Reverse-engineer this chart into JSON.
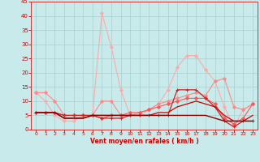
{
  "xlabel": "Vent moyen/en rafales ( km/h )",
  "xlim": [
    -0.5,
    23.5
  ],
  "ylim": [
    0,
    45
  ],
  "yticks": [
    0,
    5,
    10,
    15,
    20,
    25,
    30,
    35,
    40,
    45
  ],
  "xticks": [
    0,
    1,
    2,
    3,
    4,
    5,
    6,
    7,
    8,
    9,
    10,
    11,
    12,
    13,
    14,
    15,
    16,
    17,
    18,
    19,
    20,
    21,
    22,
    23
  ],
  "bg_color": "#c8eaea",
  "grid_color": "#a8d0d0",
  "lines": [
    {
      "x": [
        0,
        1,
        2,
        3,
        4,
        5,
        6,
        7,
        8,
        9,
        10,
        11,
        12,
        13,
        14,
        15,
        16,
        17,
        18,
        19,
        20,
        21,
        22,
        23
      ],
      "y": [
        13,
        10,
        5,
        3,
        3,
        5,
        5,
        41,
        29,
        14,
        5,
        5,
        7,
        9,
        14,
        22,
        26,
        26,
        21,
        17,
        8,
        1,
        7,
        9
      ],
      "color": "#ffaaaa",
      "lw": 0.8,
      "marker": "D",
      "ms": 2.0,
      "zorder": 2
    },
    {
      "x": [
        0,
        1,
        2,
        3,
        4,
        5,
        6,
        7,
        8,
        9,
        10,
        11,
        12,
        13,
        14,
        15,
        16,
        17,
        18,
        19,
        20,
        21,
        22,
        23
      ],
      "y": [
        13,
        13,
        10,
        5,
        5,
        5,
        5,
        10,
        10,
        5,
        5,
        6,
        7,
        9,
        10,
        11,
        12,
        13,
        12,
        17,
        18,
        8,
        7,
        9
      ],
      "color": "#ff8888",
      "lw": 0.8,
      "marker": "D",
      "ms": 2.0,
      "zorder": 3
    },
    {
      "x": [
        0,
        1,
        2,
        3,
        4,
        5,
        6,
        7,
        8,
        9,
        10,
        11,
        12,
        13,
        14,
        15,
        16,
        17,
        18,
        19,
        20,
        21,
        22,
        23
      ],
      "y": [
        6,
        6,
        6,
        5,
        5,
        5,
        5,
        4,
        5,
        5,
        6,
        6,
        7,
        8,
        9,
        10,
        11,
        11,
        11,
        9,
        4,
        2,
        4,
        9
      ],
      "color": "#ff5555",
      "lw": 0.8,
      "marker": "D",
      "ms": 2.0,
      "zorder": 4
    },
    {
      "x": [
        0,
        1,
        2,
        3,
        4,
        5,
        6,
        7,
        8,
        9,
        10,
        11,
        12,
        13,
        14,
        15,
        16,
        17,
        18,
        19,
        20,
        21,
        22,
        23
      ],
      "y": [
        6,
        6,
        6,
        5,
        5,
        5,
        5,
        4,
        4,
        4,
        5,
        5,
        5,
        5,
        5,
        14,
        14,
        14,
        11,
        8,
        3,
        1,
        3,
        3
      ],
      "color": "#cc2222",
      "lw": 0.9,
      "marker": "+",
      "ms": 3.5,
      "zorder": 5
    },
    {
      "x": [
        0,
        1,
        2,
        3,
        4,
        5,
        6,
        7,
        8,
        9,
        10,
        11,
        12,
        13,
        14,
        15,
        16,
        17,
        18,
        19,
        20,
        21,
        22,
        23
      ],
      "y": [
        6,
        6,
        6,
        4,
        4,
        4,
        5,
        5,
        5,
        5,
        5,
        5,
        5,
        6,
        6,
        8,
        9,
        10,
        9,
        8,
        5,
        3,
        3,
        5
      ],
      "color": "#cc0000",
      "lw": 0.9,
      "marker": null,
      "ms": 0,
      "zorder": 6
    },
    {
      "x": [
        0,
        1,
        2,
        3,
        4,
        5,
        6,
        7,
        8,
        9,
        10,
        11,
        12,
        13,
        14,
        15,
        16,
        17,
        18,
        19,
        20,
        21,
        22,
        23
      ],
      "y": [
        6,
        6,
        6,
        4,
        4,
        4,
        5,
        5,
        5,
        5,
        5,
        5,
        5,
        5,
        5,
        5,
        5,
        5,
        5,
        4,
        3,
        3,
        3,
        3
      ],
      "color": "#880000",
      "lw": 1.0,
      "marker": null,
      "ms": 0,
      "zorder": 7
    }
  ]
}
